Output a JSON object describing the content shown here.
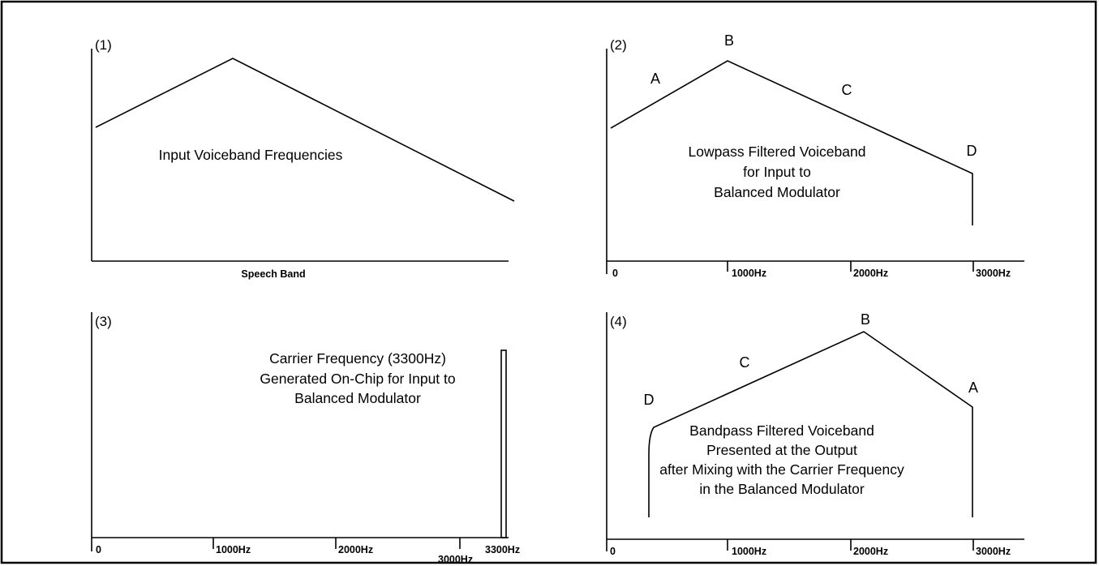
{
  "panels": [
    {
      "label": "(1)",
      "caption": [
        "Input Voiceband Frequencies"
      ],
      "axis_label": "Speech Band"
    },
    {
      "label": "(2)",
      "letters": [
        "A",
        "B",
        "C",
        "D"
      ],
      "caption": [
        "Lowpass Filtered Voiceband",
        "for Input to",
        "Balanced Modulator"
      ],
      "ticks": [
        "0",
        "1000Hz",
        "2000Hz",
        "3000Hz"
      ]
    },
    {
      "label": "(3)",
      "caption": [
        "Carrier Frequency (3300Hz)",
        "Generated On-Chip for Input to",
        "Balanced Modulator"
      ],
      "ticks": [
        "0",
        "1000Hz",
        "2000Hz",
        "3000Hz",
        "3300Hz"
      ]
    },
    {
      "label": "(4)",
      "letters": [
        "A",
        "B",
        "C",
        "D"
      ],
      "caption": [
        "Bandpass Filtered Voiceband",
        "Presented at the Output",
        "after Mixing with the Carrier Frequency",
        "in the Balanced Modulator"
      ],
      "ticks": [
        "0",
        "1000Hz",
        "2000Hz",
        "3000Hz"
      ]
    }
  ],
  "colors": {
    "ink": "#000000",
    "background": "#ffffff"
  }
}
